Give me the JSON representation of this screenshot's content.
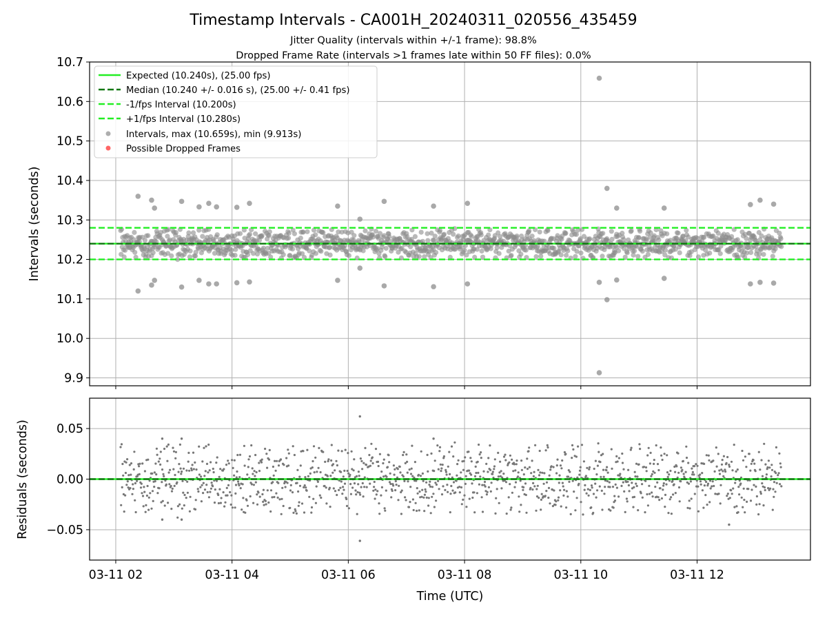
{
  "chart_data": [
    {
      "type": "scatter",
      "title": "Timestamp Intervals - CA001H_20240311_020556_435459",
      "subtitle_1": "Jitter Quality (intervals within +/-1 frame): 98.8%",
      "subtitle_2": "Dropped Frame Rate (intervals >1 frames late within 50 FF files): 0.0%",
      "ylabel": "Intervals (seconds)",
      "ylim": [
        9.88,
        10.7
      ],
      "xlim": [
        "2024-03-11 01:33",
        "2024-03-11 13:57"
      ],
      "y_ticks": [
        "9.9",
        "10.0",
        "10.1",
        "10.2",
        "10.3",
        "10.4",
        "10.5",
        "10.6",
        "10.7"
      ],
      "grid": true,
      "legend_position": "upper-left",
      "reference_lines": [
        {
          "label": "Expected (10.240s), (25.00 fps)",
          "value": 10.24,
          "style": "solid",
          "color": "#22ee22"
        },
        {
          "label": "Median (10.240 +/- 0.016 s), (25.00 +/- 0.41 fps)",
          "value": 10.24,
          "style": "dashed",
          "color": "#117711"
        },
        {
          "label": "-1/fps Interval (10.200s)",
          "value": 10.2,
          "style": "dashed",
          "color": "#22ee22"
        },
        {
          "label": "+1/fps Interval (10.280s)",
          "value": 10.28,
          "style": "dashed",
          "color": "#22ee22"
        }
      ],
      "series": [
        {
          "label": "Intervals, max (10.659s), min (9.913s)",
          "color": "#8c8c8c",
          "outliers": [
            {
              "x": "2024-03-11 02:23",
              "y": 10.36
            },
            {
              "x": "2024-03-11 02:23",
              "y": 10.12
            },
            {
              "x": "2024-03-11 02:37",
              "y": 10.35
            },
            {
              "x": "2024-03-11 02:37",
              "y": 10.135
            },
            {
              "x": "2024-03-11 02:40",
              "y": 10.33
            },
            {
              "x": "2024-03-11 02:40",
              "y": 10.147
            },
            {
              "x": "2024-03-11 03:08",
              "y": 10.347
            },
            {
              "x": "2024-03-11 03:08",
              "y": 10.13
            },
            {
              "x": "2024-03-11 03:26",
              "y": 10.333
            },
            {
              "x": "2024-03-11 03:26",
              "y": 10.147
            },
            {
              "x": "2024-03-11 03:36",
              "y": 10.342
            },
            {
              "x": "2024-03-11 03:36",
              "y": 10.138
            },
            {
              "x": "2024-03-11 03:44",
              "y": 10.333
            },
            {
              "x": "2024-03-11 03:44",
              "y": 10.138
            },
            {
              "x": "2024-03-11 04:05",
              "y": 10.332
            },
            {
              "x": "2024-03-11 04:05",
              "y": 10.141
            },
            {
              "x": "2024-03-11 04:18",
              "y": 10.342
            },
            {
              "x": "2024-03-11 04:18",
              "y": 10.143
            },
            {
              "x": "2024-03-11 05:49",
              "y": 10.335
            },
            {
              "x": "2024-03-11 05:49",
              "y": 10.147
            },
            {
              "x": "2024-03-11 06:12",
              "y": 10.302
            },
            {
              "x": "2024-03-11 06:12",
              "y": 10.178
            },
            {
              "x": "2024-03-11 06:37",
              "y": 10.347
            },
            {
              "x": "2024-03-11 06:37",
              "y": 10.133
            },
            {
              "x": "2024-03-11 07:28",
              "y": 10.335
            },
            {
              "x": "2024-03-11 07:28",
              "y": 10.131
            },
            {
              "x": "2024-03-11 08:03",
              "y": 10.342
            },
            {
              "x": "2024-03-11 08:03",
              "y": 10.138
            },
            {
              "x": "2024-03-11 10:19",
              "y": 10.659
            },
            {
              "x": "2024-03-11 10:19",
              "y": 9.913
            },
            {
              "x": "2024-03-11 10:19",
              "y": 10.142
            },
            {
              "x": "2024-03-11 10:27",
              "y": 10.38
            },
            {
              "x": "2024-03-11 10:27",
              "y": 10.098
            },
            {
              "x": "2024-03-11 10:37",
              "y": 10.33
            },
            {
              "x": "2024-03-11 10:37",
              "y": 10.148
            },
            {
              "x": "2024-03-11 11:26",
              "y": 10.33
            },
            {
              "x": "2024-03-11 11:26",
              "y": 10.152
            },
            {
              "x": "2024-03-11 12:55",
              "y": 10.339
            },
            {
              "x": "2024-03-11 12:55",
              "y": 10.138
            },
            {
              "x": "2024-03-11 13:05",
              "y": 10.35
            },
            {
              "x": "2024-03-11 13:05",
              "y": 10.142
            },
            {
              "x": "2024-03-11 13:19",
              "y": 10.34
            },
            {
              "x": "2024-03-11 13:19",
              "y": 10.14
            }
          ],
          "bulk": {
            "x_start": "2024-03-11 02:05",
            "x_end": "2024-03-11 13:27",
            "center": 10.24,
            "half_range": 0.04
          }
        },
        {
          "label": "Possible Dropped Frames",
          "color": "#ff6666",
          "points": []
        }
      ]
    },
    {
      "type": "scatter",
      "ylabel": "Residuals (seconds)",
      "xlabel": "Time (UTC)",
      "ylim": [
        -0.08,
        0.08
      ],
      "y_ticks": [
        "−0.05",
        "0.00",
        "0.05"
      ],
      "x_ticks": [
        "03-11 02",
        "03-11 04",
        "03-11 06",
        "03-11 08",
        "03-11 10",
        "03-11 12"
      ],
      "grid": true,
      "reference_lines": [
        {
          "value": 0.0,
          "style": "solid",
          "color": "#22ee22"
        },
        {
          "value": 0.0,
          "style": "dashed",
          "color": "#117711"
        }
      ],
      "series": [
        {
          "color": "#777777",
          "outliers": [
            {
              "x": "2024-03-11 06:12",
              "y": 0.062
            },
            {
              "x": "2024-03-11 06:12",
              "y": -0.061
            },
            {
              "x": "2024-03-11 12:33",
              "y": -0.045
            },
            {
              "x": "2024-03-11 02:48",
              "y": 0.04
            },
            {
              "x": "2024-03-11 03:08",
              "y": 0.04
            },
            {
              "x": "2024-03-11 07:28",
              "y": 0.04
            },
            {
              "x": "2024-03-11 03:08",
              "y": -0.04
            },
            {
              "x": "2024-03-11 02:48",
              "y": -0.04
            }
          ],
          "bulk": {
            "x_start": "2024-03-11 02:05",
            "x_end": "2024-03-11 13:27",
            "center": 0.0,
            "half_range": 0.035
          }
        }
      ]
    }
  ]
}
